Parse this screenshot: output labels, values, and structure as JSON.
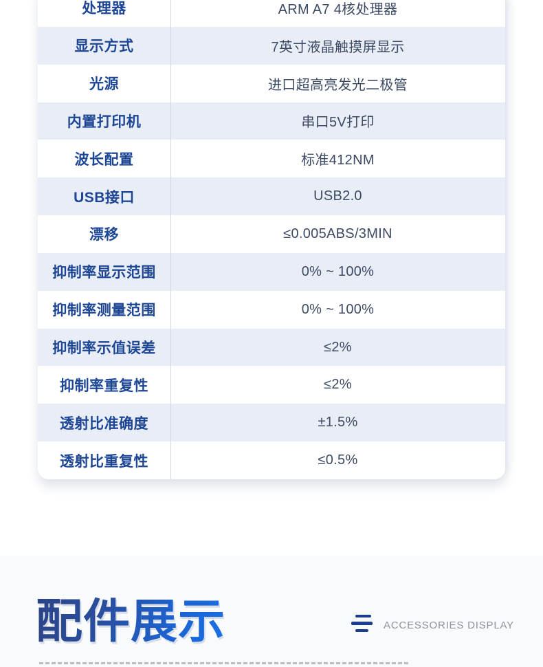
{
  "spec_table": {
    "rows": [
      {
        "label": "处理器",
        "value": "ARM A7 4核处理器"
      },
      {
        "label": "显示方式",
        "value": "7英寸液晶触摸屏显示"
      },
      {
        "label": "光源",
        "value": "进口超高亮发光二极管"
      },
      {
        "label": "内置打印机",
        "value": "串口5V打印"
      },
      {
        "label": "波长配置",
        "value": "标准412NM"
      },
      {
        "label": "USB接口",
        "value": "USB2.0"
      },
      {
        "label": "漂移",
        "value": "≤0.005ABS/3MIN"
      },
      {
        "label": "抑制率显示范围",
        "value": "0% ~ 100%"
      },
      {
        "label": "抑制率测量范围",
        "value": "0% ~ 100%"
      },
      {
        "label": "抑制率示值误差",
        "value": "≤2%"
      },
      {
        "label": "抑制率重复性",
        "value": "≤2%"
      },
      {
        "label": "透射比准确度",
        "value": "±1.5%"
      },
      {
        "label": "透射比重复性",
        "value": "≤0.5%"
      }
    ],
    "colors": {
      "label_text": "#1d4695",
      "value_text": "#3c4a63",
      "row_shade": "#e8edf6",
      "divider": "#d0d6e2"
    }
  },
  "accessories_header": {
    "title": "配件展示",
    "subtitle": "ACCESSORIES DISPLAY",
    "icon": "three-bars-icon",
    "colors": {
      "title_gradient_start": "#2b4386",
      "title_gradient_end": "#1a70e6",
      "icon": "#1d3e90",
      "subtitle_text": "#8d929b",
      "section_background": "#f9fafc"
    }
  }
}
